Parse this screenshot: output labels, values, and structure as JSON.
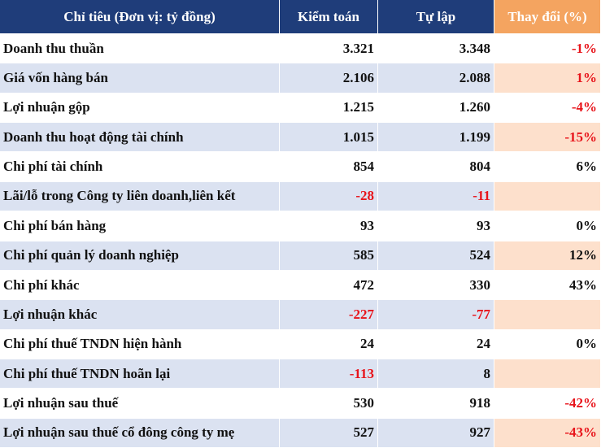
{
  "table": {
    "header": [
      "Chỉ tiêu (Đơn vị: tỷ đồng)",
      "Kiểm toán",
      "Tự lập",
      "Thay đổi (%)"
    ],
    "rows": [
      [
        "Doanh thu thuần",
        "3.321",
        "3.348",
        "-1%"
      ],
      [
        "Giá vốn hàng bán",
        "2.106",
        "2.088",
        "1%"
      ],
      [
        "Lợi nhuận gộp",
        "1.215",
        "1.260",
        "-4%"
      ],
      [
        "Doanh thu hoạt động tài chính",
        "1.015",
        "1.199",
        "-15%"
      ],
      [
        "Chi phí tài chính",
        "854",
        "804",
        "6%"
      ],
      [
        "Lãi/lỗ trong Công ty liên doanh,liên kết",
        "-28",
        "-11"
      ],
      [
        "Chi phí bán hàng",
        "93",
        "93",
        "0%"
      ],
      [
        "Chi phí quản lý doanh nghiệp",
        "585",
        "524",
        "12%"
      ],
      [
        "Chi phí khác",
        "472",
        "330",
        "43%"
      ],
      [
        "Lợi nhuận khác",
        "-227",
        "-77"
      ],
      [
        "Chi phí thuế TNDN hiện hành",
        "24",
        "24",
        "0%"
      ],
      [
        "Chi phí thuế TNDN hoãn lại",
        "-113",
        "8"
      ],
      [
        "Lợi nhuận sau thuế",
        "530",
        "918",
        "-42%"
      ],
      [
        "Lợi nhuận sau thuế cổ đông công ty mẹ",
        "527",
        "927",
        "-43%"
      ]
    ]
  }
}
